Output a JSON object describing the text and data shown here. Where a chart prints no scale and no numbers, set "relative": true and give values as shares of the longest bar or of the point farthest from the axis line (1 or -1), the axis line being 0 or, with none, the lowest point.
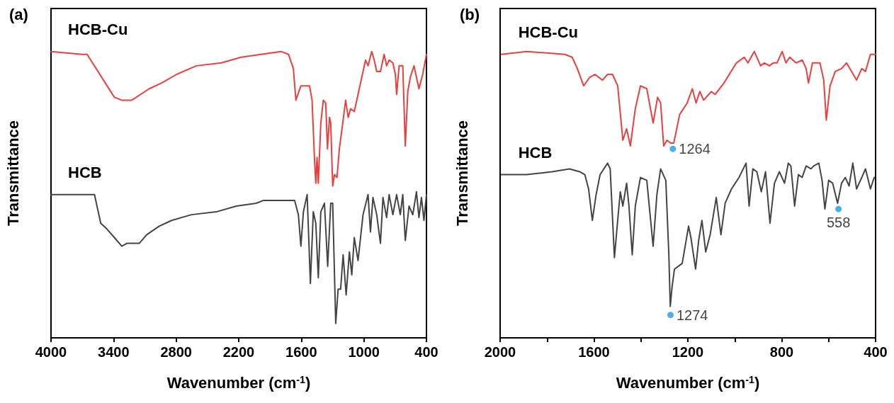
{
  "chart_data": [
    {
      "type": "line",
      "title": "(a)",
      "xlabel": "Wavenumber (cm$^{-1}$)",
      "ylabel": "Transmittance",
      "relative": true,
      "xlim": [
        4000,
        400
      ],
      "xticks": [
        4000,
        3400,
        2800,
        2200,
        1600,
        1000,
        400
      ],
      "series": [
        {
          "name": "HCB-Cu",
          "color": "#e8403f",
          "x": [
            4000,
            3702,
            3654,
            3392,
            3321,
            3225,
            3058,
            2939,
            2796,
            2605,
            2367,
            2176,
            1985,
            1795,
            1723,
            1676,
            1652,
            1604,
            1556,
            1521,
            1497,
            1473,
            1461,
            1449,
            1437,
            1413,
            1389,
            1366,
            1349,
            1330,
            1318,
            1299,
            1282,
            1258,
            1235,
            1199,
            1175,
            1151,
            1127,
            1092,
            1056,
            984,
            960,
            925,
            901,
            877,
            841,
            806,
            782,
            758,
            722,
            698,
            686,
            662,
            627,
            603,
            579,
            555,
            519,
            496,
            472,
            436,
            400
          ],
          "values": [
            1.0,
            0.99,
            0.99,
            0.84,
            0.83,
            0.83,
            0.87,
            0.89,
            0.92,
            0.95,
            0.96,
            0.98,
            0.99,
            1.0,
            0.99,
            0.94,
            0.83,
            0.88,
            0.88,
            0.88,
            0.83,
            0.62,
            0.54,
            0.63,
            0.54,
            0.75,
            0.83,
            0.82,
            0.66,
            0.77,
            0.75,
            0.53,
            0.57,
            0.56,
            0.66,
            0.76,
            0.83,
            0.77,
            0.8,
            0.79,
            0.85,
            0.97,
            0.95,
            1.0,
            0.97,
            0.93,
            0.93,
            0.99,
            0.95,
            0.97,
            0.96,
            0.92,
            0.85,
            0.95,
            0.95,
            0.67,
            0.86,
            0.91,
            0.95,
            0.91,
            0.87,
            0.92,
            0.99
          ]
        },
        {
          "name": "HCB",
          "color": "#444444",
          "x": [
            4000,
            3845,
            3726,
            3583,
            3559,
            3523,
            3464,
            3392,
            3321,
            3273,
            3154,
            3082,
            2963,
            2844,
            2653,
            2415,
            2224,
            2033,
            1962,
            1819,
            1664,
            1628,
            1604,
            1580,
            1544,
            1513,
            1485,
            1461,
            1437,
            1413,
            1378,
            1347,
            1318,
            1299,
            1270,
            1247,
            1223,
            1199,
            1170,
            1139,
            1116,
            1092,
            1056,
            1008,
            960,
            937,
            913,
            877,
            841,
            817,
            782,
            758,
            722,
            686,
            651,
            627,
            603,
            567,
            531,
            496,
            472,
            448,
            424,
            400
          ],
          "values": [
            0.5,
            0.5,
            0.5,
            0.5,
            0.46,
            0.4,
            0.38,
            0.35,
            0.32,
            0.33,
            0.33,
            0.36,
            0.39,
            0.41,
            0.43,
            0.44,
            0.46,
            0.47,
            0.48,
            0.48,
            0.48,
            0.43,
            0.32,
            0.44,
            0.5,
            0.19,
            0.44,
            0.4,
            0.21,
            0.44,
            0.47,
            0.25,
            0.47,
            0.47,
            0.05,
            0.17,
            0.17,
            0.29,
            0.15,
            0.3,
            0.22,
            0.35,
            0.27,
            0.43,
            0.5,
            0.37,
            0.49,
            0.43,
            0.33,
            0.49,
            0.42,
            0.5,
            0.43,
            0.5,
            0.43,
            0.5,
            0.34,
            0.46,
            0.43,
            0.51,
            0.42,
            0.49,
            0.41,
            0.5
          ]
        }
      ]
    },
    {
      "type": "line",
      "title": "(b)",
      "xlabel": "Wavenumber (cm$^{-1}$)",
      "ylabel": "Transmittance",
      "relative": true,
      "xlim": [
        2000,
        400
      ],
      "xticks": [
        2000,
        {
          "value": 1800,
          "label": null
        },
        1600,
        {
          "value": 1400,
          "label": null
        },
        1200,
        {
          "value": 1000,
          "label": null
        },
        800,
        {
          "value": 600,
          "label": null
        },
        400
      ],
      "series": [
        {
          "name": "HCB-Cu",
          "color": "#e8403f",
          "x": [
            1995,
            1887,
            1725,
            1693,
            1671,
            1644,
            1618,
            1596,
            1564,
            1542,
            1521,
            1499,
            1477,
            1461,
            1445,
            1424,
            1402,
            1375,
            1348,
            1329,
            1316,
            1303,
            1289,
            1273,
            1260,
            1235,
            1203,
            1181,
            1165,
            1149,
            1133,
            1100,
            1084,
            1046,
            993,
            960,
            944,
            917,
            890,
            874,
            853,
            836,
            820,
            798,
            782,
            766,
            739,
            712,
            696,
            686,
            669,
            637,
            621,
            610,
            594,
            572,
            545,
            524,
            502,
            481,
            459,
            443,
            422,
            400
          ],
          "values": [
            0.99,
            1.0,
            0.99,
            0.98,
            0.94,
            0.88,
            0.91,
            0.92,
            0.9,
            0.92,
            0.92,
            0.88,
            0.69,
            0.73,
            0.67,
            0.8,
            0.88,
            0.87,
            0.75,
            0.84,
            0.82,
            0.67,
            0.69,
            0.68,
            0.68,
            0.78,
            0.82,
            0.87,
            0.82,
            0.86,
            0.83,
            0.86,
            0.85,
            0.89,
            0.96,
            0.98,
            0.96,
            1.0,
            0.95,
            0.96,
            0.95,
            0.96,
            0.96,
            1.0,
            0.96,
            0.98,
            0.96,
            0.97,
            0.94,
            0.89,
            0.96,
            0.96,
            0.9,
            0.76,
            0.88,
            0.93,
            0.94,
            0.96,
            0.93,
            0.9,
            0.94,
            0.93,
            0.99,
            0.99
          ]
        },
        {
          "name": "HCB",
          "color": "#444444",
          "x": [
            1995,
            1887,
            1779,
            1704,
            1661,
            1639,
            1623,
            1607,
            1591,
            1574,
            1542,
            1531,
            1513,
            1499,
            1488,
            1477,
            1461,
            1451,
            1437,
            1424,
            1402,
            1375,
            1348,
            1332,
            1316,
            1294,
            1281,
            1275,
            1267,
            1257,
            1224,
            1197,
            1187,
            1167,
            1154,
            1140,
            1124,
            1105,
            1079,
            1059,
            1041,
            1014,
            982,
            952,
            939,
            923,
            906,
            887,
            869,
            850,
            831,
            810,
            788,
            772,
            761,
            745,
            729,
            713,
            696,
            675,
            664,
            642,
            628,
            616,
            600,
            583,
            562,
            545,
            529,
            513,
            497,
            481,
            459,
            443,
            422,
            406
          ],
          "values": [
            0.57,
            0.57,
            0.58,
            0.59,
            0.58,
            0.57,
            0.52,
            0.41,
            0.5,
            0.57,
            0.61,
            0.59,
            0.28,
            0.41,
            0.51,
            0.46,
            0.54,
            0.46,
            0.29,
            0.46,
            0.56,
            0.55,
            0.32,
            0.5,
            0.59,
            0.55,
            0.29,
            0.11,
            0.18,
            0.24,
            0.26,
            0.39,
            0.35,
            0.24,
            0.34,
            0.41,
            0.3,
            0.36,
            0.49,
            0.36,
            0.47,
            0.52,
            0.56,
            0.61,
            0.46,
            0.59,
            0.58,
            0.51,
            0.58,
            0.4,
            0.54,
            0.58,
            0.54,
            0.61,
            0.6,
            0.46,
            0.57,
            0.56,
            0.6,
            0.59,
            0.6,
            0.61,
            0.55,
            0.45,
            0.55,
            0.54,
            0.47,
            0.54,
            0.56,
            0.53,
            0.61,
            0.52,
            0.56,
            0.59,
            0.52,
            0.56
          ]
        }
      ],
      "annotations": [
        {
          "text": "1264",
          "x": 1264,
          "y": 0.66
        },
        {
          "text": "1274",
          "x": 1274,
          "y": 0.08
        },
        {
          "text": "558",
          "x": 558,
          "y": 0.45
        }
      ]
    }
  ]
}
